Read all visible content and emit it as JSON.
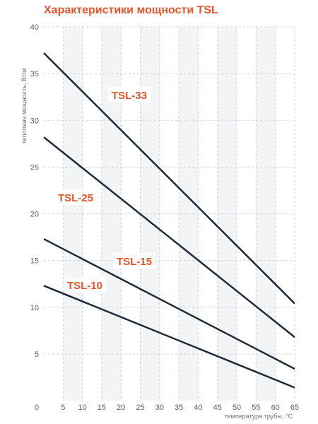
{
  "chart_data": {
    "type": "line",
    "title": "Характеристики мощности TSL",
    "xlabel": "температура трубы, °С",
    "ylabel": "тепловая мощность, Вт/м",
    "xlim": [
      0,
      65
    ],
    "ylim": [
      0,
      40
    ],
    "xticks": [
      0,
      5,
      10,
      15,
      20,
      25,
      30,
      35,
      40,
      45,
      50,
      55,
      60,
      65
    ],
    "yticks": [
      5,
      10,
      15,
      20,
      25,
      30,
      35,
      40
    ],
    "grid": true,
    "series": [
      {
        "name": "TSL-33",
        "x": [
          0,
          65
        ],
        "y": [
          37.2,
          10.4
        ]
      },
      {
        "name": "TSL-25",
        "x": [
          0,
          65
        ],
        "y": [
          28.2,
          6.8
        ]
      },
      {
        "name": "TSL-15",
        "x": [
          0,
          65
        ],
        "y": [
          17.3,
          3.4
        ]
      },
      {
        "name": "TSL-10",
        "x": [
          0,
          65
        ],
        "y": [
          12.3,
          1.4
        ]
      }
    ]
  },
  "colors": {
    "title": "#e8542a",
    "series_label": "#e8542a",
    "line": "#1f2a38",
    "grid": "#ccd3da",
    "grid_band": "#f2f4f6"
  }
}
